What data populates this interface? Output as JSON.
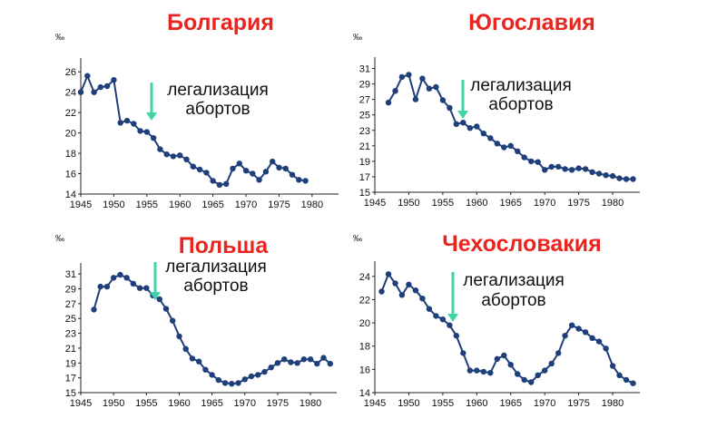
{
  "colors": {
    "title": "#e8251f",
    "line": "#1f3f7a",
    "arrow": "#3fd4a8",
    "axis": "#222222",
    "text": "#111111"
  },
  "chart_data": [
    {
      "type": "line",
      "title": "Болгария",
      "unit": "‰",
      "annotation": {
        "line1": "легализация",
        "line2": "абортов",
        "x": 1956
      },
      "xlim": [
        1945,
        1984
      ],
      "ylim": [
        14,
        27
      ],
      "xticks": [
        1945,
        1950,
        1955,
        1960,
        1965,
        1970,
        1975,
        1980
      ],
      "yticks": [
        14,
        16,
        18,
        20,
        22,
        24,
        26
      ],
      "x": [
        1945,
        1946,
        1947,
        1948,
        1949,
        1950,
        1951,
        1952,
        1953,
        1954,
        1955,
        1956,
        1957,
        1958,
        1959,
        1960,
        1961,
        1962,
        1963,
        1964,
        1965,
        1966,
        1967,
        1968,
        1969,
        1970,
        1971,
        1972,
        1973,
        1974,
        1975,
        1976,
        1977,
        1978,
        1979
      ],
      "y": [
        24.0,
        25.6,
        24.0,
        24.5,
        24.6,
        25.2,
        21.0,
        21.2,
        20.9,
        20.2,
        20.1,
        19.5,
        18.4,
        17.9,
        17.7,
        17.8,
        17.4,
        16.7,
        16.4,
        16.1,
        15.3,
        14.9,
        15.0,
        16.5,
        17.0,
        16.3,
        16.0,
        15.4,
        16.2,
        17.2,
        16.6,
        16.5,
        15.9,
        15.4,
        15.3
      ]
    },
    {
      "type": "line",
      "title": "Югославия",
      "unit": "‰",
      "annotation": {
        "line1": "легализация",
        "line2": "абортов",
        "x": 1957
      },
      "xlim": [
        1945,
        1984
      ],
      "ylim": [
        15,
        32
      ],
      "xticks": [
        1945,
        1950,
        1955,
        1960,
        1965,
        1970,
        1975,
        1980
      ],
      "yticks": [
        15,
        17,
        19,
        21,
        23,
        25,
        27,
        29,
        31
      ],
      "x": [
        1947,
        1948,
        1949,
        1950,
        1951,
        1952,
        1953,
        1954,
        1955,
        1956,
        1957,
        1958,
        1959,
        1960,
        1961,
        1962,
        1963,
        1964,
        1965,
        1966,
        1967,
        1968,
        1969,
        1970,
        1971,
        1972,
        1973,
        1974,
        1975,
        1976,
        1977,
        1978,
        1979,
        1980,
        1981,
        1982,
        1983
      ],
      "y": [
        26.6,
        28.1,
        29.9,
        30.2,
        27.0,
        29.7,
        28.4,
        28.6,
        26.9,
        25.9,
        23.8,
        24.0,
        23.3,
        23.5,
        22.6,
        22.0,
        21.3,
        20.8,
        21.0,
        20.3,
        19.5,
        19.0,
        18.9,
        17.9,
        18.3,
        18.3,
        18.0,
        17.9,
        18.1,
        18.0,
        17.6,
        17.4,
        17.2,
        17.1,
        16.8,
        16.7,
        16.7
      ]
    },
    {
      "type": "line",
      "title": "Польша",
      "unit": "‰",
      "annotation": {
        "line1": "легализация",
        "line2": "абортов",
        "x": 1956
      },
      "xlim": [
        1945,
        1984
      ],
      "ylim": [
        15,
        32
      ],
      "xticks": [
        1945,
        1950,
        1955,
        1960,
        1965,
        1970,
        1975,
        1980
      ],
      "yticks": [
        15,
        17,
        19,
        21,
        23,
        25,
        27,
        29,
        31
      ],
      "x": [
        1947,
        1948,
        1949,
        1950,
        1951,
        1952,
        1953,
        1954,
        1955,
        1956,
        1957,
        1958,
        1959,
        1960,
        1961,
        1962,
        1963,
        1964,
        1965,
        1966,
        1967,
        1968,
        1969,
        1970,
        1971,
        1972,
        1973,
        1974,
        1975,
        1976,
        1977,
        1978,
        1979,
        1980,
        1981,
        1982,
        1983
      ],
      "y": [
        26.2,
        29.3,
        29.3,
        30.5,
        30.9,
        30.5,
        29.7,
        29.1,
        29.1,
        28.1,
        27.6,
        26.3,
        24.7,
        22.6,
        20.9,
        19.6,
        19.2,
        18.1,
        17.4,
        16.7,
        16.3,
        16.2,
        16.3,
        16.8,
        17.2,
        17.4,
        17.8,
        18.4,
        19.0,
        19.5,
        19.1,
        19.0,
        19.5,
        19.5,
        18.9,
        19.7,
        18.9
      ]
    },
    {
      "type": "line",
      "title": "Чехословакия",
      "unit": "‰",
      "annotation": {
        "line1": "легализация",
        "line2": "абортов",
        "x": 1957
      },
      "xlim": [
        1945,
        1984
      ],
      "ylim": [
        14,
        25
      ],
      "xticks": [
        1945,
        1950,
        1955,
        1960,
        1965,
        1970,
        1975,
        1980
      ],
      "yticks": [
        14,
        16,
        18,
        20,
        22,
        24
      ],
      "x": [
        1946,
        1947,
        1948,
        1949,
        1950,
        1951,
        1952,
        1953,
        1954,
        1955,
        1956,
        1957,
        1958,
        1959,
        1960,
        1961,
        1962,
        1963,
        1964,
        1965,
        1966,
        1967,
        1968,
        1969,
        1970,
        1971,
        1972,
        1973,
        1974,
        1975,
        1976,
        1977,
        1978,
        1979,
        1980,
        1981,
        1982,
        1983
      ],
      "y": [
        22.7,
        24.2,
        23.4,
        22.4,
        23.3,
        22.8,
        22.1,
        21.2,
        20.6,
        20.3,
        19.8,
        18.9,
        17.4,
        15.9,
        15.9,
        15.8,
        15.7,
        16.9,
        17.2,
        16.4,
        15.6,
        15.1,
        14.9,
        15.5,
        15.9,
        16.5,
        17.4,
        18.9,
        19.8,
        19.5,
        19.2,
        18.7,
        18.4,
        17.8,
        16.3,
        15.5,
        15.1,
        14.8
      ]
    }
  ]
}
